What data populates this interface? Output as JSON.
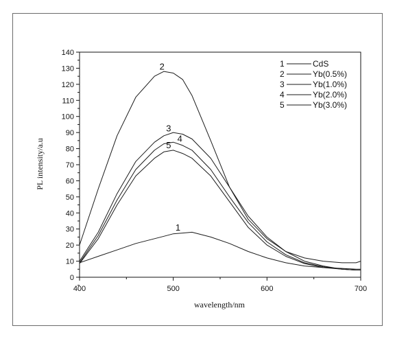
{
  "chart_data": {
    "type": "line",
    "title": "",
    "xlabel": "wavelength/nm",
    "ylabel": "PL  intensity/a.u",
    "xlim": [
      400,
      700
    ],
    "ylim": [
      0,
      140
    ],
    "xticks": [
      400,
      500,
      600,
      700
    ],
    "yticks": [
      0,
      10,
      20,
      30,
      40,
      50,
      60,
      70,
      80,
      90,
      100,
      110,
      120,
      130,
      140
    ],
    "grid": false,
    "legend_position": "top-right",
    "x": [
      400,
      420,
      440,
      460,
      480,
      490,
      500,
      510,
      520,
      540,
      560,
      580,
      600,
      620,
      640,
      660,
      680,
      695,
      700
    ],
    "series": [
      {
        "name": "CdS",
        "marker": "1",
        "label_x": 505,
        "values": [
          9,
          13,
          17,
          21,
          24,
          25.5,
          27,
          27.5,
          28,
          25,
          21,
          16,
          12,
          9,
          7,
          6,
          5.5,
          5,
          5
        ]
      },
      {
        "name": "Yb(0.5%)",
        "marker": "2",
        "label_x": 488,
        "values": [
          20,
          55,
          88,
          112,
          125,
          128,
          127,
          123,
          113,
          85,
          56,
          36,
          24,
          16,
          12,
          10,
          9,
          9,
          10
        ]
      },
      {
        "name": "Yb(1.0%)",
        "marker": "3",
        "label_x": 495,
        "values": [
          10,
          28,
          52,
          72,
          84,
          88,
          90,
          89,
          86,
          74,
          56,
          38,
          25,
          16,
          10,
          7,
          5,
          4.5,
          4.5
        ]
      },
      {
        "name": "Yb(2.0%)",
        "marker": "4",
        "label_x": 507,
        "values": [
          9,
          26,
          48,
          67,
          79,
          83,
          84,
          82,
          79,
          67,
          50,
          34,
          22,
          14,
          9,
          6.5,
          5,
          4.5,
          4.5
        ]
      },
      {
        "name": "Yb(3.0%)",
        "marker": "5",
        "label_x": 495,
        "values": [
          8.5,
          24,
          45,
          63,
          74,
          78,
          79,
          77,
          74,
          63,
          47,
          31,
          20,
          13,
          8.5,
          6,
          5,
          4.5,
          4.5
        ]
      }
    ]
  }
}
